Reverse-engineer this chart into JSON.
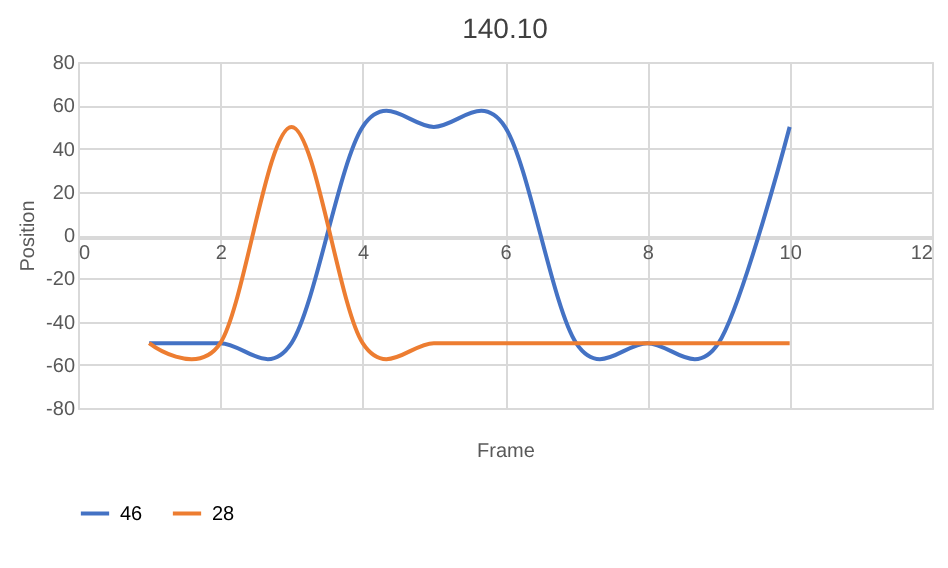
{
  "chart_data": {
    "type": "line",
    "title": "140.10",
    "xlabel": "Frame",
    "ylabel": "Position",
    "x": [
      1,
      2,
      3,
      4,
      5,
      6,
      7,
      8,
      9,
      10
    ],
    "series": [
      {
        "name": "46",
        "color": "#4472c4",
        "values": [
          -50,
          -50,
          -50,
          50,
          50,
          50,
          -50,
          -50,
          -50,
          50
        ]
      },
      {
        "name": "28",
        "color": "#ed7d31",
        "values": [
          -50,
          -50,
          50,
          -50,
          -50,
          -50,
          -50,
          -50,
          -50,
          -50
        ]
      }
    ],
    "xlim": [
      0,
      12
    ],
    "xticks": [
      0,
      2,
      4,
      6,
      8,
      10,
      12
    ],
    "ylim": [
      -80,
      80
    ],
    "yticks": [
      -80,
      -60,
      -40,
      -20,
      0,
      20,
      40,
      60,
      80
    ],
    "grid": true,
    "legend": "bottom",
    "marker": "none",
    "line_style": "solid"
  }
}
